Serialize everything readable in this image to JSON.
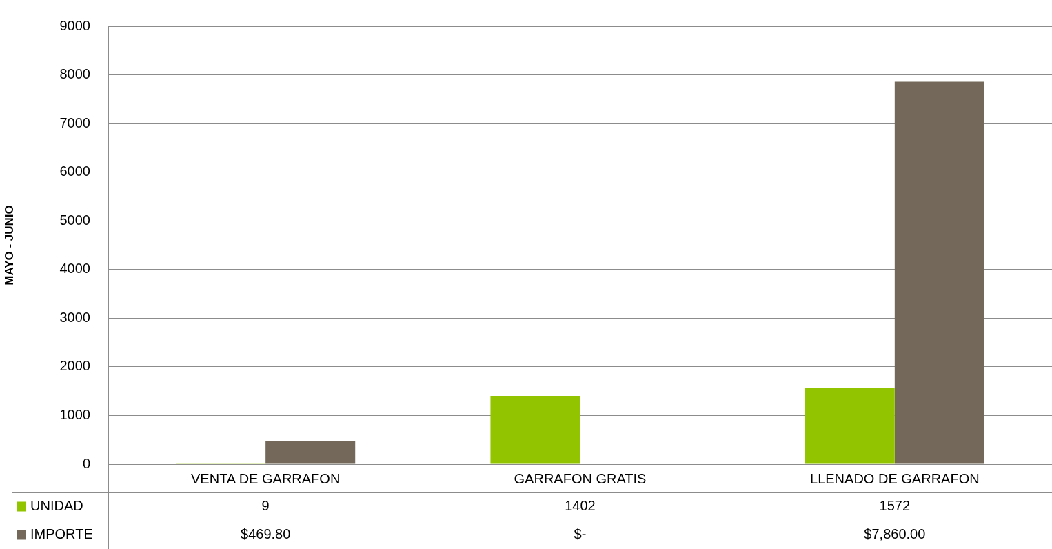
{
  "chart_data": {
    "type": "bar",
    "ylabel": "MAYO - JUNIO",
    "categories": [
      "VENTA DE GARRAFON",
      "GARRAFON GRATIS",
      "LLENADO DE GARRAFON"
    ],
    "series": [
      {
        "name": "UNIDAD",
        "color": "#92c500",
        "values": [
          9,
          1402,
          1572
        ],
        "value_labels": [
          "9",
          "1402",
          "1572"
        ]
      },
      {
        "name": "IMPORTE",
        "color": "#736859",
        "values": [
          469.8,
          0,
          7860
        ],
        "value_labels": [
          "$469.80",
          "$-",
          "$7,860.00"
        ]
      }
    ],
    "ylim": [
      0,
      9000
    ],
    "yticks": [
      0,
      1000,
      2000,
      3000,
      4000,
      5000,
      6000,
      7000,
      8000,
      9000
    ],
    "grid": "y",
    "legend": "bottom"
  }
}
